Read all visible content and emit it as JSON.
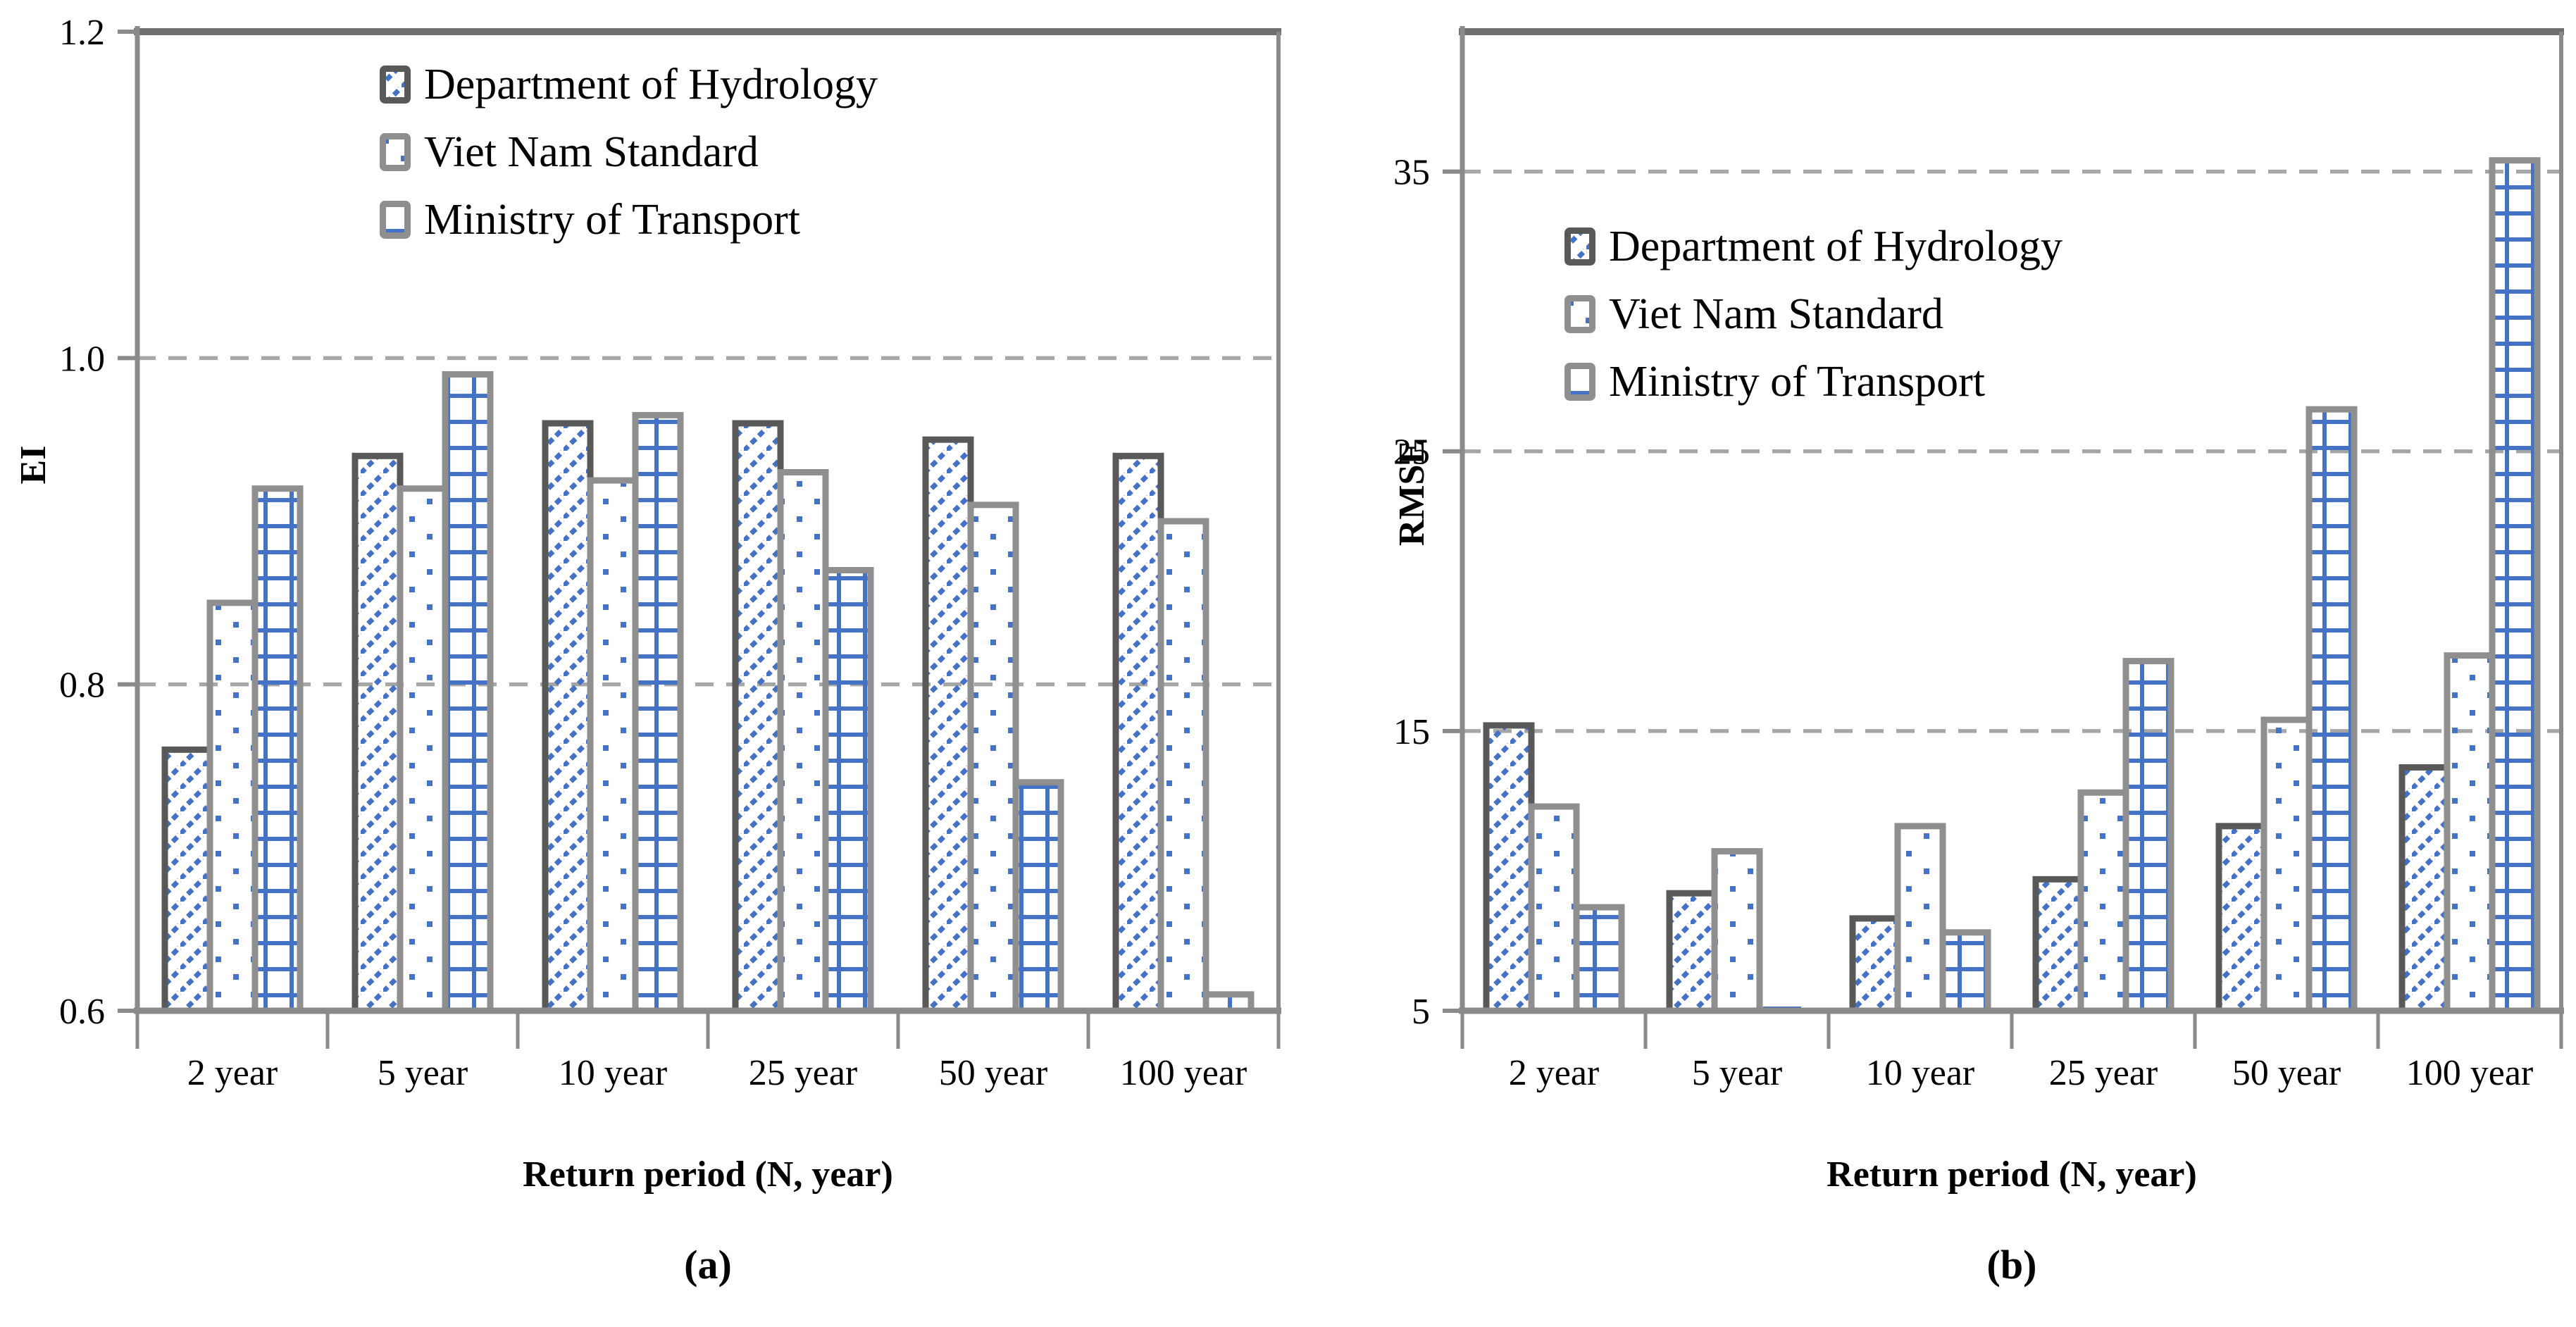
{
  "figure": {
    "background": "#FFFFFF",
    "description": "Two grouped bar charts comparing EI and RMSE for three rainfall-intensity formulas across return periods"
  },
  "legend": {
    "items": [
      {
        "label": "Department of Hydrology",
        "pattern": "diagonal-hatch"
      },
      {
        "label": "Viet Nam Standard",
        "pattern": "dots"
      },
      {
        "label": "Ministry of Transport",
        "pattern": "grid"
      }
    ]
  },
  "colors": {
    "bar_blue": "#4472C4",
    "border_dark": "#595959",
    "border_light": "#8F8F8F",
    "axis": "#8A8A8A",
    "frame_top": "#6F6F6F",
    "gridline": "#A6A6A6",
    "text": "#000000"
  },
  "chart_data": [
    {
      "type": "bar",
      "panel": "a",
      "caption": "(a)",
      "title": "",
      "xlabel": "Return period (N, year)",
      "ylabel": "EI",
      "categories": [
        "2 year",
        "5 year",
        "10 year",
        "25 year",
        "50 year",
        "100 year"
      ],
      "series": [
        {
          "name": "Department of Hydrology",
          "pattern": "diagonal-hatch",
          "values": [
            0.76,
            0.94,
            0.96,
            0.96,
            0.95,
            0.94
          ]
        },
        {
          "name": "Viet Nam Standard",
          "pattern": "dots",
          "values": [
            0.85,
            0.92,
            0.925,
            0.93,
            0.91,
            0.9
          ]
        },
        {
          "name": "Ministry of Transport",
          "pattern": "grid",
          "values": [
            0.92,
            0.99,
            0.965,
            0.87,
            0.74,
            0.61
          ]
        }
      ],
      "ylim": [
        0.6,
        1.2
      ],
      "yticks": [
        0.6,
        0.8,
        1.0,
        1.2
      ],
      "ytick_labels": [
        "0.6",
        "0.8",
        "1.0",
        "1.2"
      ],
      "gridlines": [
        0.8,
        1.0
      ],
      "grid": "dashed-horizontal",
      "legend_position": "top-inside"
    },
    {
      "type": "bar",
      "panel": "b",
      "caption": "(b)",
      "title": "",
      "xlabel": "Return period (N, year)",
      "ylabel": "RMSE",
      "categories": [
        "2 year",
        "5 year",
        "10 year",
        "25 year",
        "50 year",
        "100 year"
      ],
      "series": [
        {
          "name": "Department of Hydrology",
          "pattern": "diagonal-hatch",
          "values": [
            15.2,
            9.2,
            8.3,
            9.7,
            11.6,
            13.7
          ]
        },
        {
          "name": "Viet Nam Standard",
          "pattern": "dots",
          "values": [
            12.3,
            10.7,
            11.6,
            12.8,
            15.4,
            17.7
          ]
        },
        {
          "name": "Ministry of Transport",
          "pattern": "grid",
          "values": [
            8.7,
            5.0,
            7.8,
            17.5,
            26.5,
            35.4
          ]
        }
      ],
      "ylim": [
        5,
        40
      ],
      "yticks": [
        5,
        15,
        25,
        35
      ],
      "ytick_labels": [
        "5",
        "15",
        "25",
        "35"
      ],
      "gridlines": [
        15,
        25,
        35
      ],
      "grid": "dashed-horizontal",
      "legend_position": "top-inside"
    }
  ]
}
